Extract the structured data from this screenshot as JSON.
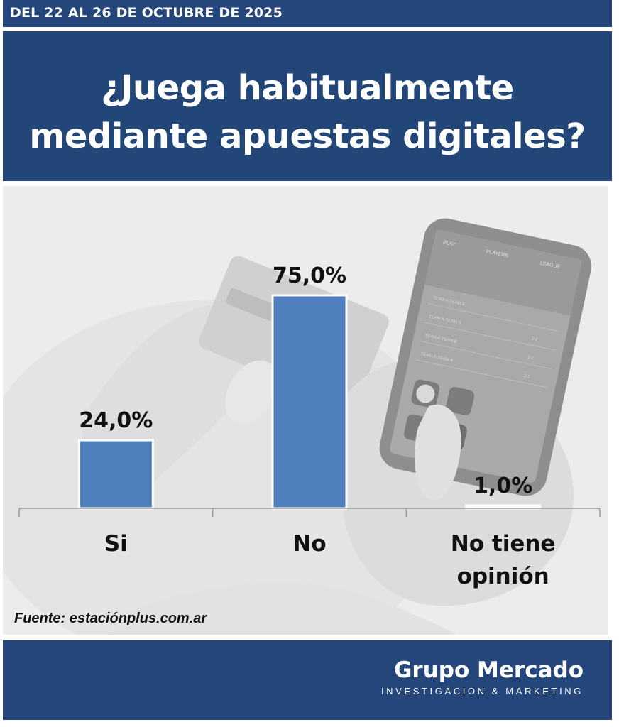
{
  "header": {
    "date": "DEL 22 AL 26 DE OCTUBRE DE 2025"
  },
  "title": {
    "line1": "¿Juega habitualmente",
    "line2": "mediante apuestas digitales?"
  },
  "source": "Fuente: estaciónplus.com.ar",
  "footer": {
    "brand": "Grupo Mercado",
    "tagline": "INVESTIGACION & MARKETING"
  },
  "phone_screen": {
    "tabs": [
      "PLAY",
      "PLAYERS",
      "LEAGUE"
    ],
    "rows": [
      "TEAM A-TEAM B",
      "TEAM A-TEAM B",
      "TEAM A-TEAM B",
      "TEAM A-TEAM B"
    ],
    "scores": [
      "2-1",
      "2-1",
      "2-1"
    ]
  },
  "colors": {
    "bar": "#4f7fbd",
    "header": "#24467a",
    "title_bg": "#234679"
  },
  "chart_data": {
    "type": "bar",
    "categories": [
      [
        "Si"
      ],
      [
        "No"
      ],
      [
        "No tiene",
        "opinión"
      ]
    ],
    "values": [
      24.0,
      75.0,
      1.0
    ],
    "value_labels": [
      "24,0%",
      "75,0%",
      "1,0%"
    ],
    "title": "¿Juega habitualmente mediante apuestas digitales?",
    "xlabel": "",
    "ylabel": "",
    "ylim": [
      0,
      80
    ],
    "grid": false,
    "legend": "none"
  }
}
